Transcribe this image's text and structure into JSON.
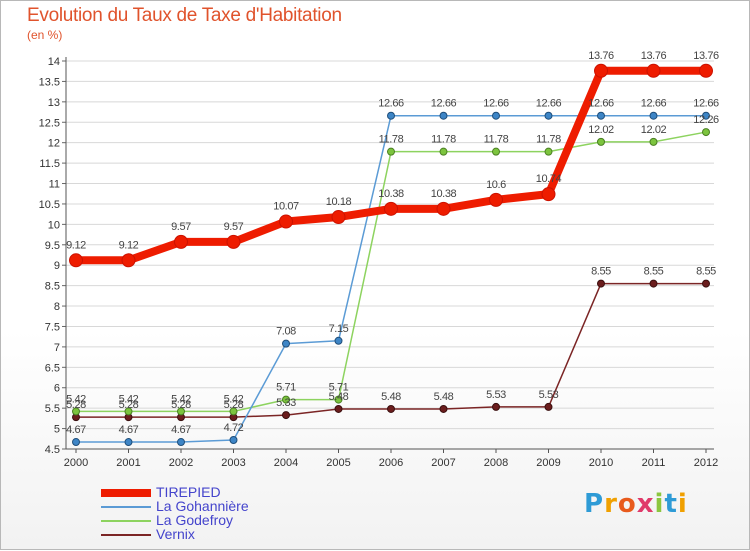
{
  "header": {
    "title": "Evolution du Taux de Taxe d'Habitation",
    "subtitle": "(en %)"
  },
  "brand": {
    "text": "Proxiti",
    "letters": [
      "P",
      "r",
      "o",
      "x",
      "i",
      "t",
      "i"
    ],
    "colors": [
      "#2e9bd6",
      "#f0a000",
      "#e85a1c",
      "#e03a6a",
      "#8cc63f",
      "#2e9bd6",
      "#f0a000"
    ]
  },
  "chart_data": {
    "type": "line",
    "title": "Evolution du Taux de Taxe d'Habitation",
    "ylabel": "(en %)",
    "xlabel": "",
    "x": [
      "2000",
      "2001",
      "2002",
      "2003",
      "2004",
      "2005",
      "2006",
      "2007",
      "2008",
      "2009",
      "2010",
      "2011",
      "2012"
    ],
    "ylim": [
      4.5,
      14
    ],
    "yticks": [
      "4.5",
      "5",
      "5.5",
      "6",
      "6.5",
      "7",
      "7.5",
      "8",
      "8.5",
      "9",
      "9.5",
      "10",
      "10.5",
      "11",
      "11.5",
      "12",
      "12.5",
      "13",
      "13.5",
      "14"
    ],
    "grid": "horizontal",
    "legend_position": "bottom-left",
    "series": [
      {
        "name": "TIREPIED",
        "color": "#ee1c00",
        "values": [
          9.12,
          9.12,
          9.57,
          9.57,
          10.07,
          10.18,
          10.38,
          10.38,
          10.6,
          10.74,
          13.76,
          13.76,
          13.76
        ],
        "labels": [
          "9.12",
          "9.12",
          "9.57",
          "9.57",
          "10.07",
          "10.18",
          "10.38",
          "10.38",
          "10.6",
          "10.74",
          "13.76",
          "13.76",
          "13.76"
        ]
      },
      {
        "name": "La Gohannière",
        "color": "#5b9bd5",
        "values": [
          4.67,
          4.67,
          4.67,
          4.72,
          7.08,
          7.15,
          12.66,
          12.66,
          12.66,
          12.66,
          12.66,
          12.66,
          12.66
        ],
        "labels": [
          "4.67",
          "4.67",
          "4.67",
          "4.72",
          "7.08",
          "7.15",
          "12.66",
          "12.66",
          "12.66",
          "12.66",
          "12.66",
          "12.66",
          "12.66"
        ]
      },
      {
        "name": "La Godefroy",
        "color": "#8dd35f",
        "values": [
          5.42,
          5.42,
          5.42,
          5.42,
          5.71,
          5.71,
          11.78,
          11.78,
          11.78,
          11.78,
          12.02,
          12.02,
          12.26
        ],
        "labels": [
          "5.42",
          "5.42",
          "5.42",
          "5.42",
          "5.71",
          "5.71",
          "11.78",
          "11.78",
          "11.78",
          "11.78",
          "12.02",
          "12.02",
          "12.26"
        ]
      },
      {
        "name": "Vernix",
        "color": "#7b2525",
        "values": [
          5.28,
          5.28,
          5.28,
          5.28,
          5.33,
          5.48,
          5.48,
          5.48,
          5.53,
          5.53,
          8.55,
          8.55,
          8.55
        ],
        "labels": [
          "5.28",
          "5.28",
          "5.28",
          "5.28",
          "5.33",
          "5.48",
          "5.48",
          "5.48",
          "5.53",
          "5.53",
          "8.55",
          "8.55",
          "8.55"
        ]
      }
    ]
  }
}
